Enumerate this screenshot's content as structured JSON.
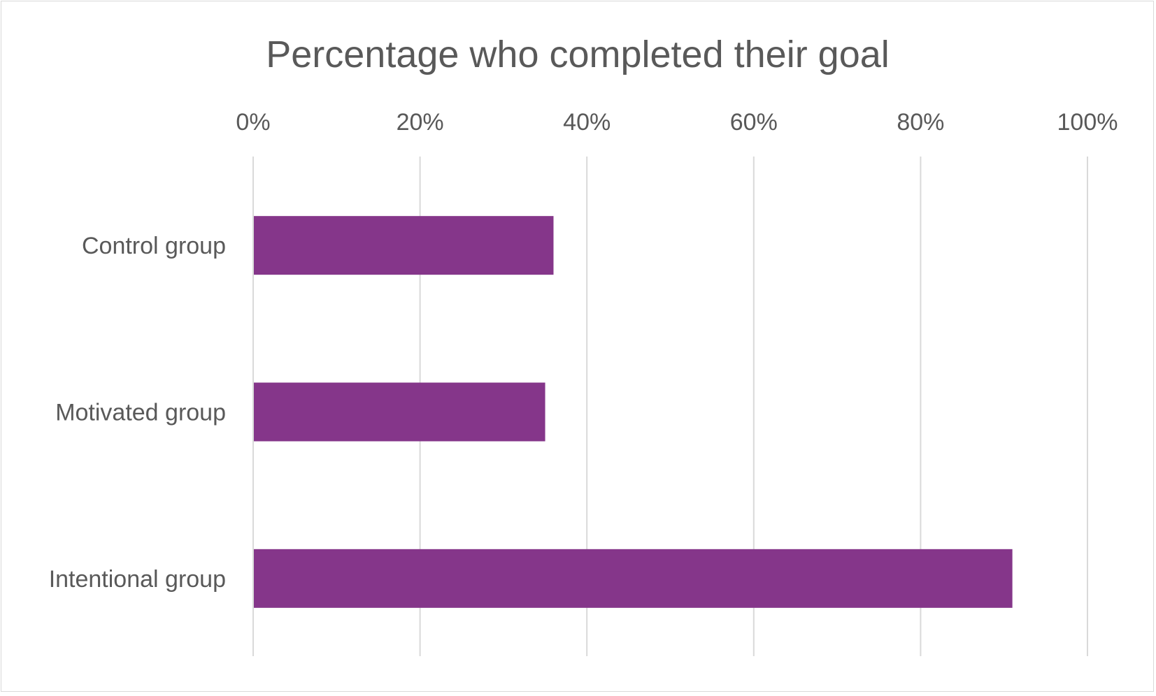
{
  "chart_data": {
    "type": "bar",
    "orientation": "horizontal",
    "title": "Percentage who completed their goal",
    "categories": [
      "Control group",
      "Motivated group",
      "Intentional group"
    ],
    "series": [
      {
        "values": [
          0.36,
          0.35,
          0.91
        ]
      }
    ],
    "xlim": [
      0,
      1
    ],
    "x_ticks": [
      0,
      0.2,
      0.4,
      0.6,
      0.8,
      1.0
    ],
    "x_tick_labels": [
      "0%",
      "20%",
      "40%",
      "60%",
      "80%",
      "100%"
    ],
    "xaxis_position": "top",
    "grid": true,
    "legend": "none",
    "colors": {
      "bar": "#85368A",
      "grid": "#d9d9d9",
      "text": "#595959",
      "title": "#595959",
      "border": "#d9d9d9"
    }
  }
}
